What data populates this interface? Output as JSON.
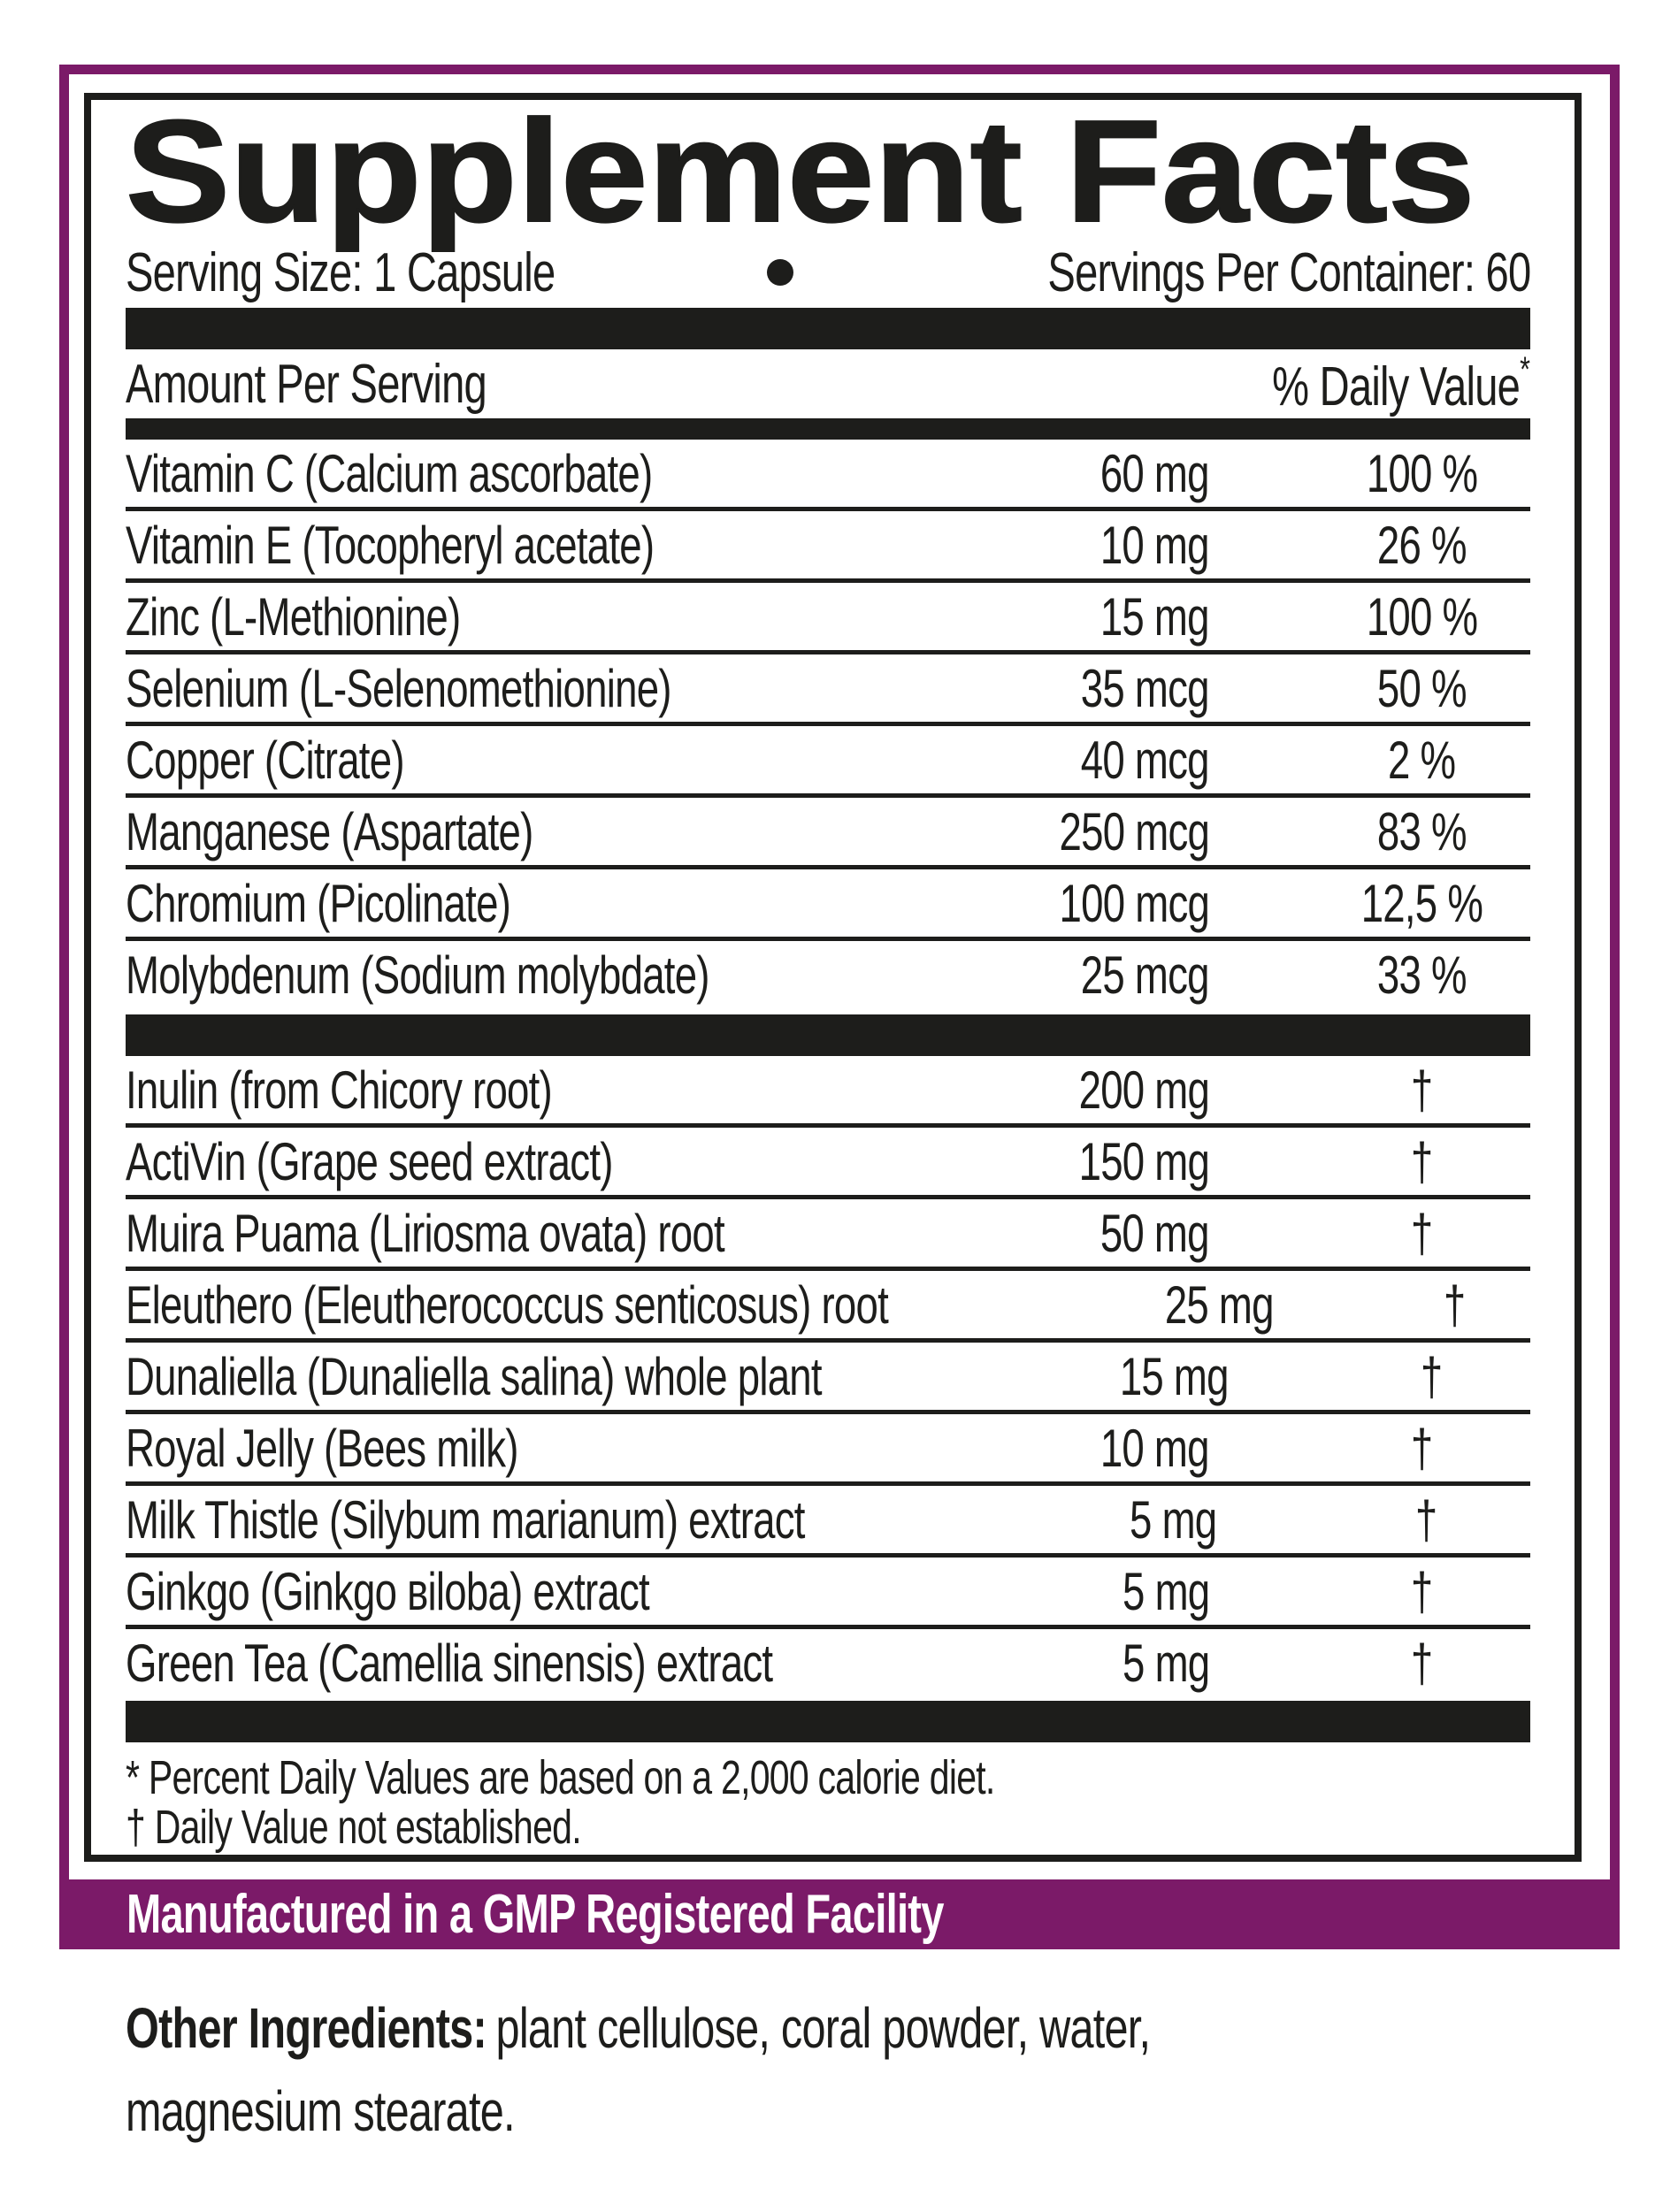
{
  "colors": {
    "ink": "#1d1d1b",
    "accent_purple": "#7b1a68",
    "paper": "#ffffff",
    "banner_text": "#ffffff"
  },
  "title": "Supplement Facts",
  "serving": {
    "size_label": "Serving Size: 1 Capsule",
    "bullet_glyph": "•",
    "per_container_label": "Servings Per Container: 60"
  },
  "table": {
    "header": {
      "amount": "Amount Per Serving",
      "dv": "% Daily Value",
      "dv_asterisk": "*"
    },
    "section1": [
      {
        "name": "Vitamin C (Calcium ascorbate)",
        "amount": "60 mg",
        "dv": "100 %"
      },
      {
        "name": "Vitamin E (Tocopheryl acetate)",
        "amount": "10 mg",
        "dv": "26 %"
      },
      {
        "name": "Zinc (L-Methionine)",
        "amount": "15 mg",
        "dv": "100 %"
      },
      {
        "name": "Selenium (L-Selenomethionine)",
        "amount": "35 mcg",
        "dv": "50 %"
      },
      {
        "name": "Copper (Citrate)",
        "amount": "40 mcg",
        "dv": "2 %"
      },
      {
        "name": "Manganese (Aspartate)",
        "amount": "250 mcg",
        "dv": "83 %"
      },
      {
        "name": "Chromium (Picolinate)",
        "amount": "100 mcg",
        "dv": "12,5 %"
      },
      {
        "name": "Molybdenum (Sodium molybdate)",
        "amount": "25 mcg",
        "dv": "33 %"
      }
    ],
    "section2": [
      {
        "name": "Inulin (from Chicory root)",
        "amount": "200 mg",
        "dv": "†"
      },
      {
        "name": "ActiVin (Grape seed extract)",
        "amount": "150 mg",
        "dv": "†"
      },
      {
        "name": "Muira Puama (Liriosma ovata) root",
        "amount": "50 mg",
        "dv": "†"
      },
      {
        "name": "Eleuthero (Eleutherococcus senticosus) root",
        "amount": "25 mg",
        "dv": "†"
      },
      {
        "name": "Dunaliella (Dunaliella salina) whole plant",
        "amount": "15 mg",
        "dv": "†"
      },
      {
        "name": "Royal Jelly (Bees milk)",
        "amount": "10 mg",
        "dv": "†"
      },
      {
        "name": "Milk Thistle (Silybum marianum) extract",
        "amount": "5 mg",
        "dv": "†"
      },
      {
        "name": "Ginkgo (Ginkgo вiloba) extract",
        "amount": "5 mg",
        "dv": "†"
      },
      {
        "name": "Green Tea (Camellia sinensis) extract",
        "amount": "5 mg",
        "dv": "†"
      }
    ],
    "footnotes": {
      "line1": "* Percent Daily Values are based on a 2,000 calorie diet.",
      "line2": "† Daily Value not established."
    }
  },
  "banner": {
    "text": "Manufactured in a GMP Registered Facility"
  },
  "other_ingredients": {
    "label": "Other Ingredients:",
    "line1": "plant cellulose, coral powder, water,",
    "line2": "magnesium stearate."
  }
}
